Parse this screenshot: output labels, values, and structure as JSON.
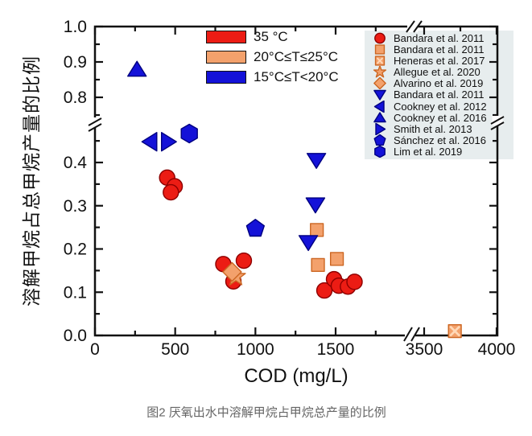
{
  "figure": {
    "caption": "图2 厌氧出水中溶解甲烷占甲烷总产量的比例",
    "x_axis_label": "COD (mg/L)",
    "y_axis_label": "溶解甲烷占总甲烷产量的比例"
  },
  "colors": {
    "markers": {
      "red": {
        "fill": "#ec1c14",
        "stroke": "#8e0000"
      },
      "orange": {
        "fill": "#f3a16c",
        "stroke": "#cc6622",
        "cross": "#ffd9b8"
      },
      "blue": {
        "fill": "#1412d8",
        "stroke": "#000080"
      }
    },
    "reference_legend_background": "#e7edee",
    "axis": "#111111",
    "caption_text": "#666666"
  },
  "temperature_legend": {
    "items": [
      {
        "label": "35 °C",
        "color_key": "red"
      },
      {
        "label": "20°C≤T≤25°C",
        "color_key": "orange"
      },
      {
        "label": "15°C≤T<20°C",
        "color_key": "blue"
      }
    ]
  },
  "reference_legend": {
    "items": [
      {
        "label": "Bandara et al. 2011",
        "marker": "circle",
        "color_key": "red"
      },
      {
        "label": "Bandara et al. 2011",
        "marker": "square",
        "color_key": "orange"
      },
      {
        "label": "Heneras et al. 2017",
        "marker": "square-x",
        "color_key": "orange"
      },
      {
        "label": "Allegue et al. 2020",
        "marker": "star",
        "color_key": "orange"
      },
      {
        "label": "Alvarino et al. 2019",
        "marker": "diamond",
        "color_key": "orange"
      },
      {
        "label": "Bandara et al. 2011",
        "marker": "tri-down",
        "color_key": "blue"
      },
      {
        "label": "Cookney et al. 2012",
        "marker": "tri-left",
        "color_key": "blue"
      },
      {
        "label": "Cookney et al. 2016",
        "marker": "tri-up",
        "color_key": "blue"
      },
      {
        "label": "Smith et al. 2013",
        "marker": "tri-right",
        "color_key": "blue"
      },
      {
        "label": "Sánchez et al. 2016",
        "marker": "pentagon",
        "color_key": "blue"
      },
      {
        "label": "Lim et al. 2019",
        "marker": "hexagon",
        "color_key": "blue"
      }
    ]
  },
  "chart_data": {
    "type": "scatter",
    "title": "",
    "xlabel": "COD (mg/L)",
    "ylabel": "溶解甲烷占总甲烷产量的比例",
    "axes": {
      "x_major_main": [
        0,
        500,
        1000,
        1500
      ],
      "x_minor_main": [
        250,
        750,
        1250,
        1750
      ],
      "x_major_after_break": [
        3500,
        4000
      ],
      "x_minor_after_break": [
        3750
      ],
      "x_break_between": [
        1900,
        3450
      ],
      "y_major_lower": [
        0.0,
        0.1,
        0.2,
        0.3,
        0.4
      ],
      "y_minor_lower": [
        0.05,
        0.15,
        0.25,
        0.35,
        0.45
      ],
      "y_major_upper": [
        0.8,
        0.9,
        1.0
      ],
      "y_minor_upper": [
        0.75,
        0.85,
        0.95
      ],
      "y_break_between": [
        0.48,
        0.74
      ],
      "grid": false
    },
    "series": [
      {
        "name": "Bandara et al. 2011",
        "temperature": "35 °C",
        "marker": "circle",
        "color_key": "red",
        "points": [
          [
            450,
            0.365
          ],
          [
            497,
            0.345
          ],
          [
            473,
            0.331
          ],
          [
            800,
            0.165
          ],
          [
            928,
            0.173
          ],
          [
            863,
            0.125
          ],
          [
            1430,
            0.104
          ],
          [
            1490,
            0.13
          ],
          [
            1520,
            0.115
          ],
          [
            1577,
            0.113
          ],
          [
            1618,
            0.124
          ]
        ]
      },
      {
        "name": "Allegue et al. 2020",
        "temperature": "20°C≤T≤25°C",
        "marker": "star",
        "color_key": "orange",
        "points": [
          [
            878,
            0.136
          ]
        ]
      },
      {
        "name": "Alvarino et al. 2019",
        "temperature": "20°C≤T≤25°C",
        "marker": "diamond",
        "color_key": "orange",
        "points": [
          [
            855,
            0.147
          ]
        ]
      },
      {
        "name": "Bandara et al. 2011",
        "temperature": "20°C≤T≤25°C",
        "marker": "square",
        "color_key": "orange",
        "points": [
          [
            1383,
            0.244
          ],
          [
            1390,
            0.163
          ],
          [
            1508,
            0.177
          ]
        ]
      },
      {
        "name": "Heneras et al. 2017",
        "temperature": "20°C≤T≤25°C",
        "marker": "square-x",
        "color_key": "orange",
        "points": [
          [
            3712,
            0.01
          ]
        ]
      },
      {
        "name": "Bandara et al. 2011",
        "temperature": "15°C≤T<20°C",
        "marker": "tri-down",
        "color_key": "blue",
        "points": [
          [
            1380,
            0.406
          ],
          [
            1374,
            0.303
          ],
          [
            1330,
            0.216
          ]
        ]
      },
      {
        "name": "Cookney et al. 2012",
        "temperature": "15°C≤T<20°C",
        "marker": "tri-left",
        "color_key": "blue",
        "points": [
          [
            345,
            0.448
          ]
        ]
      },
      {
        "name": "Cookney et al. 2016",
        "temperature": "15°C≤T<20°C",
        "marker": "tri-up",
        "color_key": "blue",
        "points": [
          [
            262,
            0.878
          ]
        ]
      },
      {
        "name": "Smith et al. 2013",
        "temperature": "15°C≤T<20°C",
        "marker": "tri-right",
        "color_key": "blue",
        "points": [
          [
            455,
            0.448
          ]
        ]
      },
      {
        "name": "Sánchez et al. 2016",
        "temperature": "15°C≤T<20°C",
        "marker": "pentagon",
        "color_key": "blue",
        "points": [
          [
            1000,
            0.247
          ]
        ]
      },
      {
        "name": "Lim et al. 2019",
        "temperature": "15°C≤T<20°C",
        "marker": "hexagon",
        "color_key": "blue",
        "points": [
          [
            588,
            0.467
          ]
        ]
      }
    ]
  }
}
